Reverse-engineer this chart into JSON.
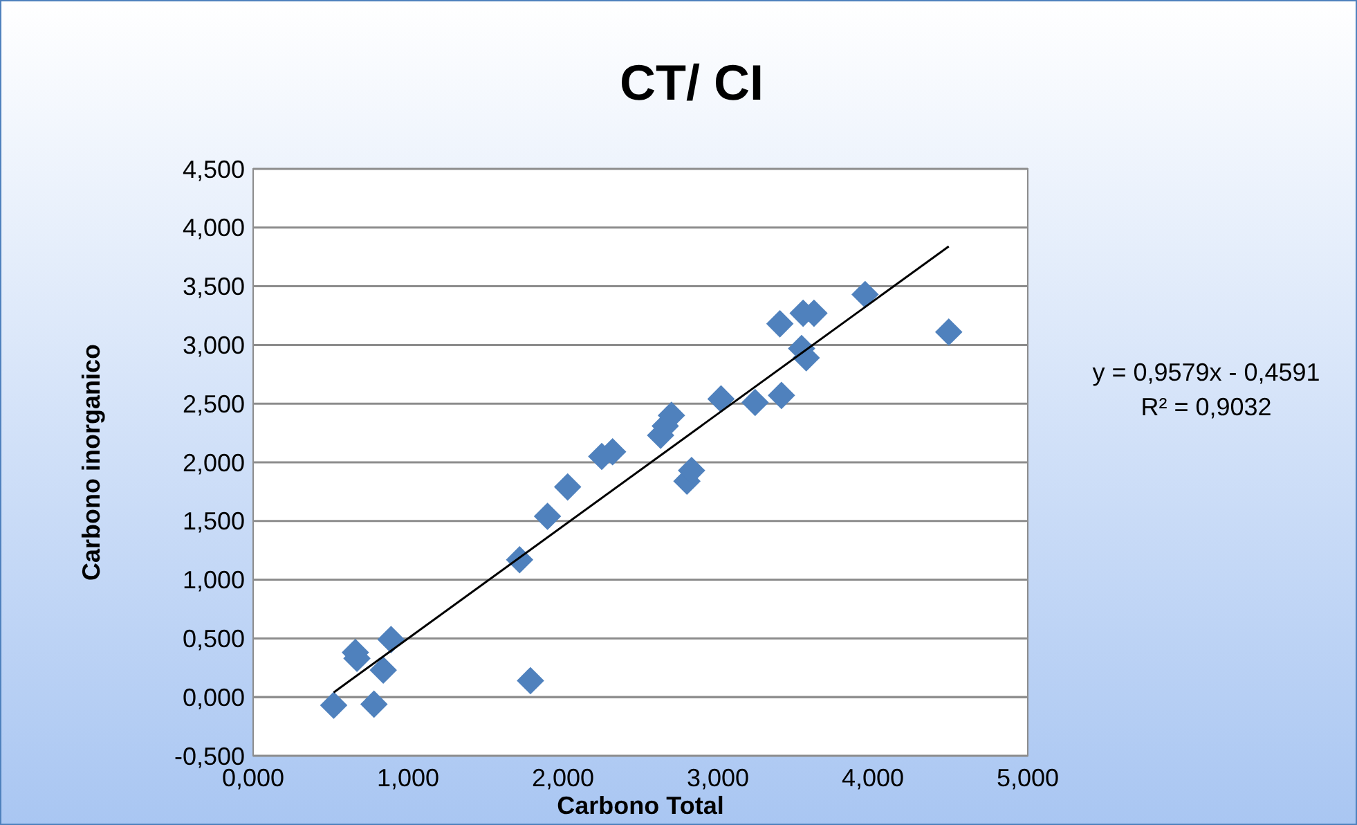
{
  "chart_data": {
    "type": "scatter",
    "title": "CT/ CI",
    "xlabel": "Carbono Total",
    "ylabel": "Carbono inorganico",
    "xlim": [
      0,
      5
    ],
    "xticks": [
      {
        "value": 0,
        "label": "0,000"
      },
      {
        "value": 1,
        "label": "1,000"
      },
      {
        "value": 2,
        "label": "2,000"
      },
      {
        "value": 3,
        "label": "3,000"
      },
      {
        "value": 4,
        "label": "4,000"
      },
      {
        "value": 5,
        "label": "5,000"
      }
    ],
    "ylim": [
      -0.5,
      4.5
    ],
    "yticks": [
      {
        "value": -0.5,
        "label": "-0,500"
      },
      {
        "value": 0,
        "label": "0,000"
      },
      {
        "value": 0.5,
        "label": "0,500"
      },
      {
        "value": 1,
        "label": "1,000"
      },
      {
        "value": 1.5,
        "label": "1,500"
      },
      {
        "value": 2,
        "label": "2,000"
      },
      {
        "value": 2.5,
        "label": "2,500"
      },
      {
        "value": 3,
        "label": "3,000"
      },
      {
        "value": 3.5,
        "label": "3,500"
      },
      {
        "value": 4,
        "label": "4,000"
      },
      {
        "value": 4.5,
        "label": "4,500"
      }
    ],
    "grid": "y",
    "marker": "diamond",
    "series": [
      {
        "color": "#4f81bd",
        "x": [
          0.52,
          0.66,
          0.67,
          0.78,
          0.84,
          0.89,
          1.72,
          1.79,
          1.9,
          2.03,
          2.25,
          2.32,
          2.63,
          2.66,
          2.7,
          2.8,
          2.83,
          3.02,
          3.24,
          3.41,
          3.4,
          3.54,
          3.57,
          3.55,
          3.62,
          3.95,
          4.49
        ],
        "values": [
          -0.07,
          0.38,
          0.33,
          -0.06,
          0.23,
          0.49,
          1.17,
          0.14,
          1.54,
          1.79,
          2.05,
          2.09,
          2.23,
          2.31,
          2.4,
          1.84,
          1.93,
          2.54,
          2.51,
          2.57,
          3.18,
          2.97,
          2.89,
          3.27,
          3.27,
          3.43,
          3.11
        ]
      },
      {
        "type": "line",
        "color": "#000000",
        "marker": "none",
        "x": [
          0.52,
          4.49
        ],
        "values": [
          0.04,
          3.84
        ]
      }
    ],
    "annotations": [
      "y = 0,9579x - 0,4591",
      "R² = 0,9032"
    ]
  }
}
